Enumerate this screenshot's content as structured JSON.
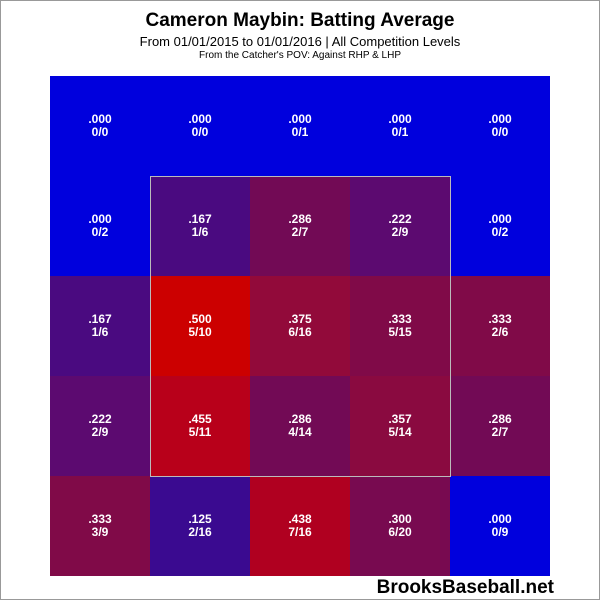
{
  "chart_data": {
    "type": "heatmap",
    "title": "Cameron Maybin: Batting Average",
    "subtitle": "From 01/01/2015 to 01/01/2016 | All Competition Levels",
    "subtitle2": "From the Catcher's POV:  Against RHP & LHP",
    "rows": [
      [
        {
          "avg": ".000",
          "frac": "0/0",
          "color": "#0000dd"
        },
        {
          "avg": ".000",
          "frac": "0/0",
          "color": "#0000dd"
        },
        {
          "avg": ".000",
          "frac": "0/1",
          "color": "#0000dd"
        },
        {
          "avg": ".000",
          "frac": "0/1",
          "color": "#0000dd"
        },
        {
          "avg": ".000",
          "frac": "0/0",
          "color": "#0000dd"
        }
      ],
      [
        {
          "avg": ".000",
          "frac": "0/2",
          "color": "#0000dd"
        },
        {
          "avg": ".167",
          "frac": "1/6",
          "color": "#4a0a80"
        },
        {
          "avg": ".286",
          "frac": "2/7",
          "color": "#720a55"
        },
        {
          "avg": ".222",
          "frac": "2/9",
          "color": "#5c0a70"
        },
        {
          "avg": ".000",
          "frac": "0/2",
          "color": "#0000dd"
        }
      ],
      [
        {
          "avg": ".167",
          "frac": "1/6",
          "color": "#4a0a80"
        },
        {
          "avg": ".500",
          "frac": "5/10",
          "color": "#cc0000"
        },
        {
          "avg": ".375",
          "frac": "6/16",
          "color": "#920a3a"
        },
        {
          "avg": ".333",
          "frac": "5/15",
          "color": "#800a48"
        },
        {
          "avg": ".333",
          "frac": "2/6",
          "color": "#800a48"
        }
      ],
      [
        {
          "avg": ".222",
          "frac": "2/9",
          "color": "#5c0a70"
        },
        {
          "avg": ".455",
          "frac": "5/11",
          "color": "#b8001a"
        },
        {
          "avg": ".286",
          "frac": "4/14",
          "color": "#720a55"
        },
        {
          "avg": ".357",
          "frac": "5/14",
          "color": "#8a0a40"
        },
        {
          "avg": ".286",
          "frac": "2/7",
          "color": "#720a55"
        }
      ],
      [
        {
          "avg": ".333",
          "frac": "3/9",
          "color": "#800a48"
        },
        {
          "avg": ".125",
          "frac": "2/16",
          "color": "#3a0a90"
        },
        {
          "avg": ".438",
          "frac": "7/16",
          "color": "#b00020"
        },
        {
          "avg": ".300",
          "frac": "6/20",
          "color": "#780a50"
        },
        {
          "avg": ".000",
          "frac": "0/9",
          "color": "#0000dd"
        }
      ]
    ]
  },
  "watermark": "BrooksBaseball.net"
}
